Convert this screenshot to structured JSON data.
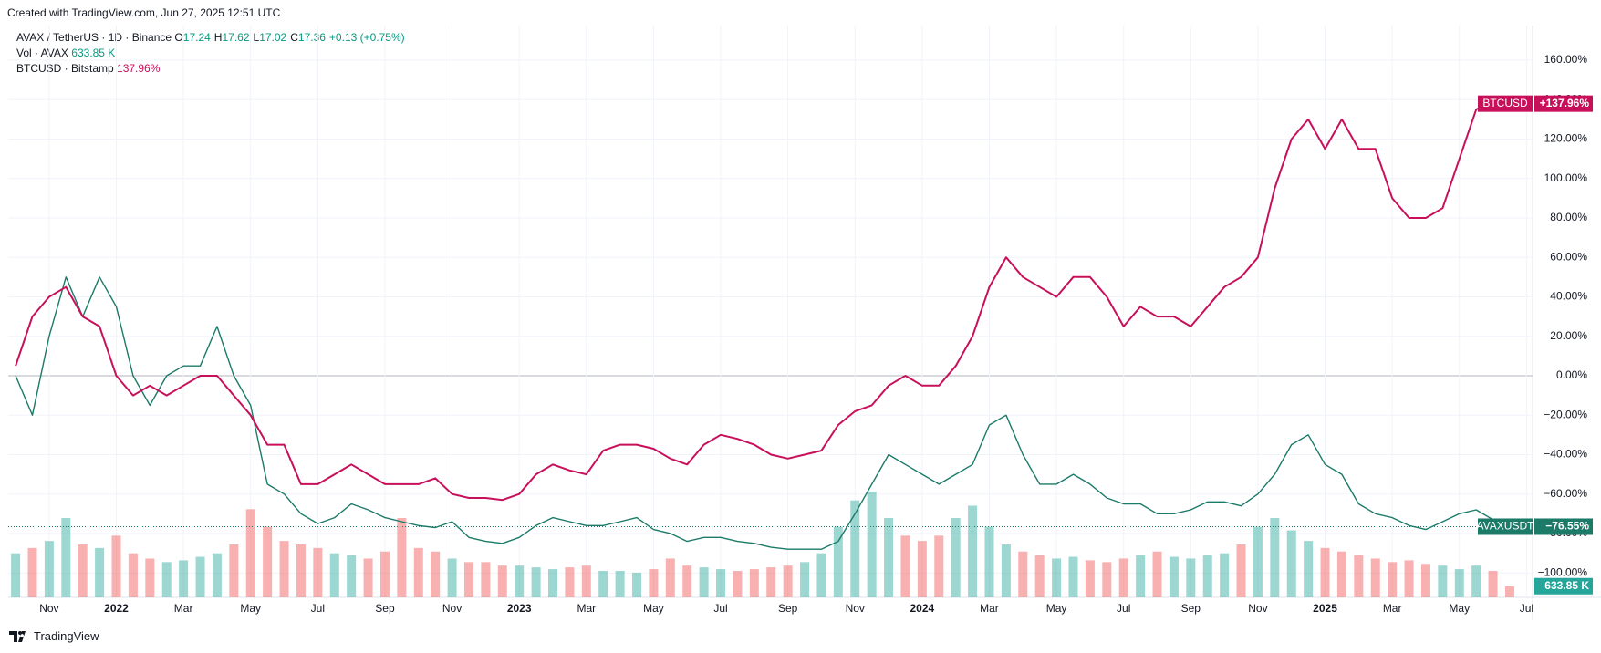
{
  "header": {
    "credit": "Created with TradingView.com, Jun 27, 2025 12:51 UTC"
  },
  "legend": {
    "symbol": "AVAX / TetherUS · 1D · Binance",
    "ohlc": [
      {
        "key": "O",
        "value": "17.24"
      },
      {
        "key": "H",
        "value": "17.62"
      },
      {
        "key": "L",
        "value": "17.02"
      },
      {
        "key": "C",
        "value": "17.36"
      },
      {
        "key": "",
        "value": "+0.13 (+0.75%)"
      }
    ],
    "volume": {
      "name": "Vol · AVAX",
      "value": "633.85 K"
    },
    "compare": {
      "name": "BTCUSD · Bitstamp",
      "value": "137.96%"
    }
  },
  "footer": {
    "brand": "TradingView"
  },
  "chart_data": {
    "type": "line",
    "x": [
      -1,
      -0.5,
      0,
      0.5,
      1,
      1.5,
      2,
      2.5,
      3,
      3.5,
      4,
      4.5,
      5,
      5.5,
      6,
      6.5,
      7,
      7.5,
      8,
      8.5,
      9,
      9.5,
      10,
      10.5,
      11,
      11.5,
      12,
      12.5,
      13,
      13.5,
      14,
      14.5,
      15,
      15.5,
      16,
      16.5,
      17,
      17.5,
      18,
      18.5,
      19,
      19.5,
      20,
      20.5,
      21,
      21.5,
      22,
      22.5,
      23,
      23.5,
      24,
      24.5,
      25,
      25.5,
      26,
      26.5,
      27,
      27.5,
      28,
      28.5,
      29,
      29.5,
      30,
      30.5,
      31,
      31.5,
      32,
      32.5,
      33,
      33.5,
      34,
      34.5,
      35,
      35.5,
      36,
      36.5,
      37,
      37.5,
      38,
      38.5,
      39,
      39.5,
      40,
      40.5,
      41,
      41.5,
      42,
      42.5,
      43,
      43.5
    ],
    "xlim": [
      -1.22,
      44.18
    ],
    "xticks": [
      {
        "value": 0,
        "label": "Nov"
      },
      {
        "value": 2,
        "label": "2022"
      },
      {
        "value": 4,
        "label": "Mar"
      },
      {
        "value": 6,
        "label": "May"
      },
      {
        "value": 8,
        "label": "Jul"
      },
      {
        "value": 10,
        "label": "Sep"
      },
      {
        "value": 12,
        "label": "Nov"
      },
      {
        "value": 14,
        "label": "2023"
      },
      {
        "value": 16,
        "label": "Mar"
      },
      {
        "value": 18,
        "label": "May"
      },
      {
        "value": 20,
        "label": "Jul"
      },
      {
        "value": 22,
        "label": "Sep"
      },
      {
        "value": 24,
        "label": "Nov"
      },
      {
        "value": 26,
        "label": "2024"
      },
      {
        "value": 28,
        "label": "Mar"
      },
      {
        "value": 30,
        "label": "May"
      },
      {
        "value": 32,
        "label": "Jul"
      },
      {
        "value": 34,
        "label": "Sep"
      },
      {
        "value": 36,
        "label": "Nov"
      },
      {
        "value": 38,
        "label": "2025"
      },
      {
        "value": 40,
        "label": "Mar"
      },
      {
        "value": 42,
        "label": "May"
      },
      {
        "value": 44,
        "label": "Jul"
      }
    ],
    "ylim": [
      -112.4,
      174.8
    ],
    "yticks": [
      {
        "value": 160,
        "label": "160.00%"
      },
      {
        "value": 140,
        "label": "140.00%"
      },
      {
        "value": 120,
        "label": "120.00%"
      },
      {
        "value": 100,
        "label": "100.00%"
      },
      {
        "value": 80,
        "label": "80.00%"
      },
      {
        "value": 60,
        "label": "60.00%"
      },
      {
        "value": 40,
        "label": "40.00%"
      },
      {
        "value": 20,
        "label": "20.00%"
      },
      {
        "value": 0,
        "label": "0.00%"
      },
      {
        "value": -20,
        "label": "−20.00%"
      },
      {
        "value": -40,
        "label": "−40.00%"
      },
      {
        "value": -60,
        "label": "−60.00%"
      },
      {
        "value": -80,
        "label": "−80.00%"
      },
      {
        "value": -100,
        "label": "−100.00%"
      }
    ],
    "grid": true,
    "series": [
      {
        "name": "AVAXUSDT",
        "color": "#1b7a68",
        "badge": "−76.55%",
        "values": [
          0,
          -20,
          20,
          50,
          30,
          50,
          35,
          0,
          -15,
          0,
          5,
          5,
          25,
          0,
          -15,
          -55,
          -60,
          -70,
          -75,
          -72,
          -65,
          -68,
          -72,
          -74,
          -76,
          -77,
          -74,
          -82,
          -84,
          -85,
          -82,
          -76,
          -72,
          -74,
          -76,
          -76,
          -74,
          -72,
          -78,
          -80,
          -84,
          -82,
          -82,
          -84,
          -85,
          -87,
          -88,
          -88,
          -88,
          -84,
          -70,
          -55,
          -40,
          -45,
          -50,
          -55,
          -50,
          -45,
          -25,
          -20,
          -40,
          -55,
          -55,
          -50,
          -55,
          -62,
          -65,
          -65,
          -70,
          -70,
          -68,
          -64,
          -64,
          -66,
          -60,
          -50,
          -35,
          -30,
          -45,
          -50,
          -65,
          -70,
          -72,
          -76,
          -78,
          -74,
          -70,
          -68,
          -73,
          -76.55
        ]
      },
      {
        "name": "BTCUSD",
        "color": "#c8105a",
        "badge": "+137.96%",
        "values": [
          5,
          30,
          40,
          45,
          30,
          25,
          0,
          -10,
          -5,
          -10,
          -5,
          0,
          0,
          -10,
          -20,
          -35,
          -35,
          -55,
          -55,
          -50,
          -45,
          -50,
          -55,
          -55,
          -55,
          -52,
          -60,
          -62,
          -62,
          -63,
          -60,
          -50,
          -45,
          -48,
          -50,
          -38,
          -35,
          -35,
          -37,
          -42,
          -45,
          -35,
          -30,
          -32,
          -35,
          -40,
          -42,
          -40,
          -38,
          -25,
          -18,
          -15,
          -5,
          0,
          -5,
          -5,
          5,
          20,
          45,
          60,
          50,
          45,
          40,
          50,
          50,
          40,
          25,
          35,
          30,
          30,
          25,
          35,
          45,
          50,
          60,
          95,
          120,
          130,
          115,
          130,
          115,
          115,
          90,
          80,
          80,
          85,
          110,
          135,
          140,
          137.96
        ]
      }
    ],
    "volume": {
      "up_color": "#26a69a",
      "down_color": "#ef5350",
      "ylim": [
        0,
        15000
      ],
      "badge": "633.85 K",
      "values": [
        2500,
        2800,
        3200,
        4500,
        3000,
        2800,
        3500,
        2500,
        2200,
        2000,
        2100,
        2300,
        2500,
        3000,
        5000,
        4000,
        3200,
        3000,
        2800,
        2500,
        2400,
        2200,
        2600,
        4500,
        2800,
        2600,
        2200,
        2000,
        2000,
        1800,
        1800,
        1700,
        1600,
        1700,
        1800,
        1500,
        1500,
        1400,
        1600,
        2200,
        1800,
        1700,
        1600,
        1500,
        1600,
        1700,
        1800,
        2000,
        2500,
        4000,
        5500,
        6000,
        4500,
        3500,
        3200,
        3500,
        4500,
        5200,
        4000,
        3000,
        2600,
        2400,
        2200,
        2300,
        2100,
        2000,
        2200,
        2400,
        2600,
        2300,
        2200,
        2400,
        2500,
        3000,
        4000,
        4500,
        3800,
        3200,
        2800,
        2600,
        2400,
        2200,
        2000,
        2100,
        1900,
        1800,
        1600,
        1800,
        1500,
        633.85
      ]
    }
  }
}
